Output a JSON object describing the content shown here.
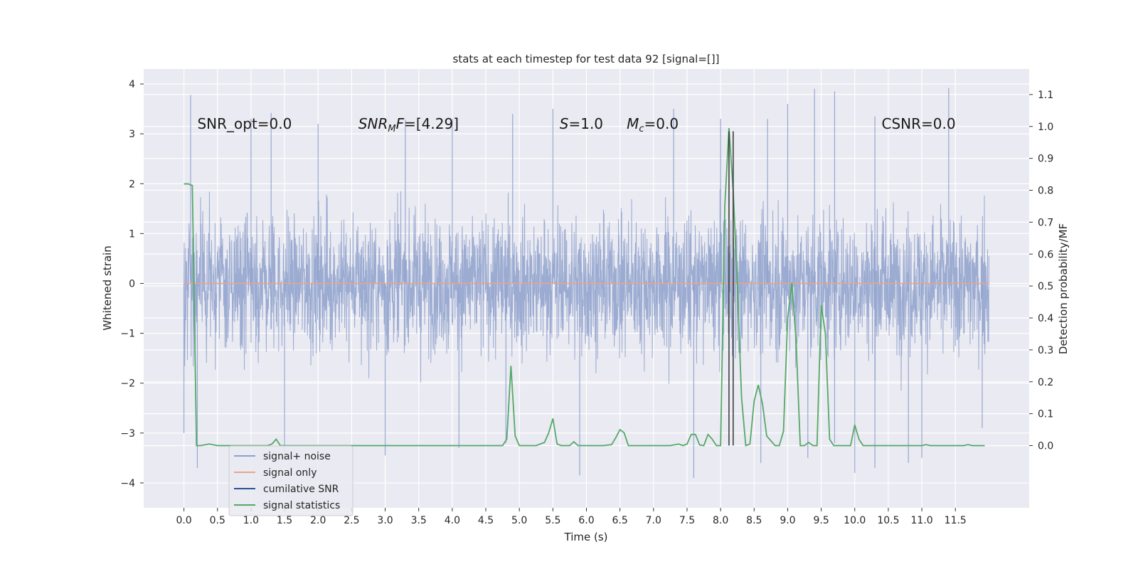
{
  "chart_data": {
    "type": "line",
    "title": "stats at each timestep for test data 92 [signal=[]]",
    "xlabel": "Time (s)",
    "ylabel_left": "Whitened strain",
    "ylabel_right": "Detection probability/MF",
    "xlim": [
      -0.6,
      12.6
    ],
    "ylim_left": [
      -4.5,
      4.3
    ],
    "ylim_right": [
      -0.195,
      1.18
    ],
    "x_ticks": [
      "0.0",
      "0.5",
      "1.0",
      "1.5",
      "2.0",
      "2.5",
      "3.0",
      "3.5",
      "4.0",
      "4.5",
      "5.0",
      "5.5",
      "6.0",
      "6.5",
      "7.0",
      "7.5",
      "8.0",
      "8.5",
      "9.0",
      "9.5",
      "10.0",
      "10.5",
      "11.0",
      "11.5"
    ],
    "y_ticks_left": [
      -4,
      -3,
      -2,
      -1,
      0,
      1,
      2,
      3,
      4
    ],
    "y_ticks_right": [
      "0.0",
      "0.1",
      "0.2",
      "0.3",
      "0.4",
      "0.5",
      "0.6",
      "0.7",
      "0.8",
      "0.9",
      "1.0",
      "1.1"
    ],
    "grid": true,
    "legend_position": "lower-left",
    "colors": {
      "noise": "#8da0cb",
      "signal": "#e8a58a",
      "snr": "#2c4f94",
      "stats": "#55a868",
      "vline": "#333333",
      "background": "#eaeaf2"
    },
    "series": [
      {
        "name": "signal+ noise",
        "envelope_note_x": [
          0.0,
          12.0
        ],
        "typical_range": [
          -2.3,
          2.3
        ],
        "peaks_positive": [
          [
            0.1,
            3.78
          ],
          [
            1.0,
            3.3
          ],
          [
            1.3,
            3.42
          ],
          [
            2.0,
            3.2
          ],
          [
            3.3,
            3.28
          ],
          [
            4.0,
            3.3
          ],
          [
            4.9,
            3.4
          ],
          [
            5.5,
            3.5
          ],
          [
            7.3,
            3.5
          ],
          [
            8.0,
            3.3
          ],
          [
            8.7,
            3.3
          ],
          [
            9.0,
            3.6
          ],
          [
            9.4,
            3.9
          ],
          [
            9.7,
            3.85
          ],
          [
            10.3,
            3.35
          ],
          [
            11.4,
            3.92
          ]
        ],
        "peaks_negative": [
          [
            0.0,
            -3.0
          ],
          [
            0.2,
            -3.7
          ],
          [
            1.5,
            -3.55
          ],
          [
            3.0,
            -3.45
          ],
          [
            4.1,
            -3.3
          ],
          [
            4.8,
            -3.2
          ],
          [
            5.9,
            -3.85
          ],
          [
            7.6,
            -3.9
          ],
          [
            8.6,
            -3.6
          ],
          [
            9.3,
            -3.5
          ],
          [
            9.7,
            -3.2
          ],
          [
            10.0,
            -3.8
          ],
          [
            10.3,
            -3.7
          ],
          [
            10.8,
            -3.6
          ],
          [
            11.0,
            -3.5
          ],
          [
            11.9,
            -2.9
          ]
        ]
      },
      {
        "name": "signal only",
        "x": [
          0.0,
          12.0
        ],
        "y": [
          0.0,
          0.0
        ]
      },
      {
        "name": "cumilative SNR",
        "x": [],
        "y": []
      },
      {
        "name": "signal statistics",
        "x": [
          0.0,
          0.0625,
          0.125,
          0.1875,
          0.25,
          0.375,
          0.5,
          0.75,
          1.0,
          1.25,
          1.3125,
          1.375,
          1.4375,
          1.5,
          2.0,
          2.5,
          3.0,
          3.5,
          4.0,
          4.5,
          4.75,
          4.8125,
          4.875,
          4.9375,
          5.0,
          5.25,
          5.375,
          5.4375,
          5.5,
          5.5625,
          5.625,
          5.75,
          5.8125,
          5.875,
          6.0,
          6.25,
          6.375,
          6.4375,
          6.5,
          6.5625,
          6.625,
          6.6875,
          6.75,
          7.0,
          7.25,
          7.375,
          7.4375,
          7.5,
          7.5625,
          7.625,
          7.6875,
          7.75,
          7.8125,
          7.875,
          7.9375,
          8.0,
          8.0625,
          8.125,
          8.1875,
          8.25,
          8.3125,
          8.375,
          8.4375,
          8.5,
          8.5625,
          8.625,
          8.6875,
          8.75,
          8.8125,
          8.875,
          8.9375,
          9.0,
          9.0625,
          9.125,
          9.1875,
          9.25,
          9.3125,
          9.375,
          9.4375,
          9.5,
          9.5625,
          9.625,
          9.6875,
          9.75,
          9.8125,
          9.875,
          9.9375,
          10.0,
          10.0625,
          10.125,
          10.1875,
          10.5,
          11.0,
          11.0625,
          11.125,
          11.5,
          11.5625,
          11.625,
          11.6875,
          11.75,
          11.9375
        ],
        "y": [
          0.82,
          0.82,
          0.815,
          0.0,
          0.0,
          0.005,
          0.0,
          0.0,
          0.0,
          0.0,
          0.005,
          0.02,
          0.0,
          0.0,
          0.0,
          0.0,
          0.0,
          0.0,
          0.0,
          0.0,
          0.0,
          0.02,
          0.25,
          0.03,
          0.0,
          0.0,
          0.01,
          0.04,
          0.085,
          0.005,
          0.0,
          0.0,
          0.012,
          0.0,
          0.0,
          0.0,
          0.003,
          0.025,
          0.05,
          0.04,
          0.0,
          0.0,
          0.0,
          0.0,
          0.0,
          0.005,
          0.0,
          0.005,
          0.035,
          0.035,
          0.002,
          0.0,
          0.035,
          0.02,
          0.0,
          0.0,
          0.75,
          0.995,
          0.8,
          0.5,
          0.15,
          0.0,
          0.005,
          0.14,
          0.19,
          0.13,
          0.03,
          0.015,
          0.0,
          0.0,
          0.045,
          0.4,
          0.51,
          0.33,
          0.0,
          0.0,
          0.01,
          0.0,
          0.0,
          0.44,
          0.35,
          0.02,
          0.0,
          0.0,
          0.0,
          0.0,
          0.0,
          0.065,
          0.02,
          0.0,
          0.0,
          0.0,
          0.0,
          0.003,
          0.0,
          0.0,
          0.0,
          0.0,
          0.003,
          0.0,
          0.0
        ]
      }
    ],
    "vlines": [
      {
        "x": 8.125,
        "y_range_left": [
          -3.25,
          3.05
        ]
      },
      {
        "x": 8.1875,
        "y_range_left": [
          -3.25,
          3.05
        ]
      }
    ],
    "annotations": [
      {
        "id": "snr_opt",
        "text": "SNR_opt=0.0",
        "x": 0.2,
        "y": 3.1
      },
      {
        "id": "snr_mf",
        "text_main": "SNR",
        "text_sub": "M",
        "text_tail": "F=[4.29]",
        "x": 2.6,
        "y": 3.1
      },
      {
        "id": "s",
        "text_main": "S",
        "text_tail": "=1.0",
        "x": 5.6,
        "y": 3.1
      },
      {
        "id": "mc",
        "text_main": "M",
        "text_sub": "c",
        "text_tail": "=0.0",
        "x": 6.6,
        "y": 3.1
      },
      {
        "id": "csnr",
        "text": "CSNR=0.0",
        "x": 10.4,
        "y": 3.1
      }
    ]
  }
}
